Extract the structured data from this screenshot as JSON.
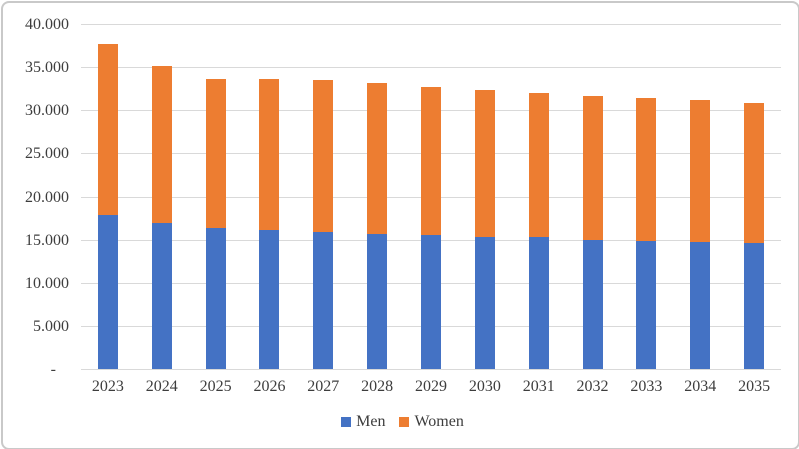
{
  "chart_data": {
    "type": "bar",
    "stacked": true,
    "title": "",
    "xlabel": "",
    "ylabel": "",
    "categories": [
      "2023",
      "2024",
      "2025",
      "2026",
      "2027",
      "2028",
      "2029",
      "2030",
      "2031",
      "2032",
      "2033",
      "2034",
      "2035"
    ],
    "series": [
      {
        "name": "Men",
        "color": "#4472C4",
        "values": [
          17900,
          16900,
          16300,
          16100,
          15900,
          15700,
          15500,
          15350,
          15250,
          14950,
          14800,
          14700,
          14600
        ]
      },
      {
        "name": "Women",
        "color": "#ED7D31",
        "values": [
          19800,
          18200,
          17350,
          17550,
          17600,
          17450,
          17250,
          17050,
          16750,
          16650,
          16600,
          16450,
          16300
        ]
      }
    ],
    "totals": [
      37700,
      35100,
      33650,
      33650,
      33500,
      33150,
      32750,
      32400,
      32000,
      31600,
      31400,
      31150,
      30900
    ],
    "ylim": [
      0,
      40000
    ],
    "ytick_step": 5000,
    "ytick_labels": [
      "-",
      "5.000",
      "10.000",
      "15.000",
      "20.000",
      "25.000",
      "30.000",
      "35.000",
      "40.000"
    ],
    "grid": true,
    "legend_position": "bottom"
  },
  "legend": {
    "items": [
      {
        "label": "Men",
        "color": "#4472C4"
      },
      {
        "label": "Women",
        "color": "#ED7D31"
      }
    ]
  },
  "styles": {
    "gridline_color": "#D9D9D9",
    "axis_line_color": "#D9D9D9",
    "text_color": "#3D3D3D",
    "frame_border_color": "#C9C9C9",
    "background": "#FFFFFF"
  }
}
